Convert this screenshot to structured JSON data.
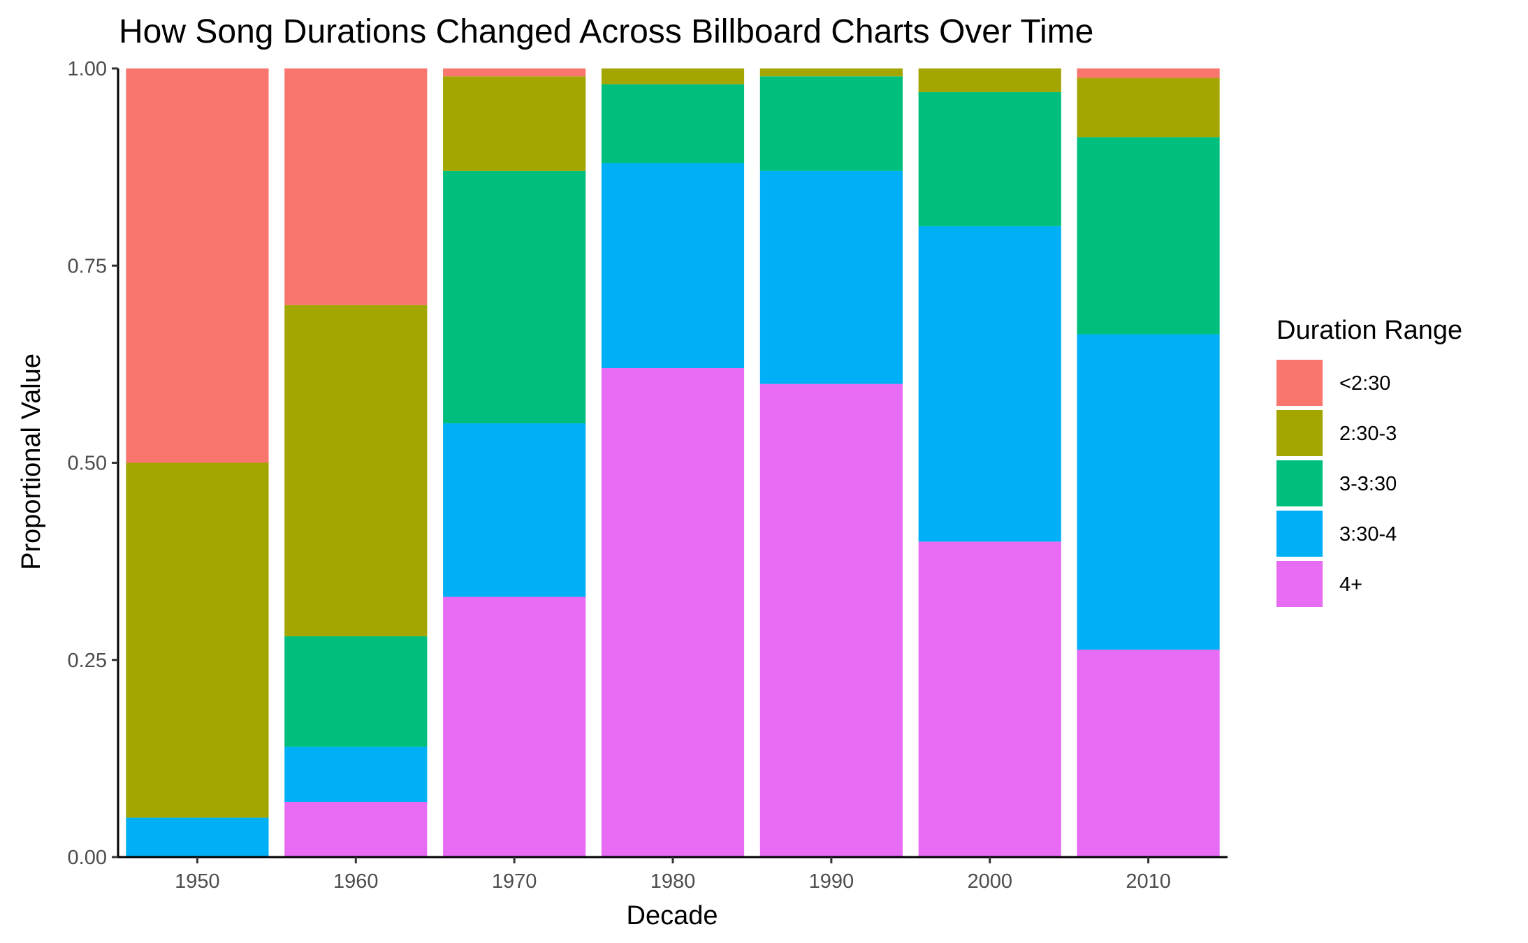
{
  "chart_data": {
    "type": "bar",
    "stacked": true,
    "title": "How Song Durations Changed Across Billboard Charts Over Time",
    "xlabel": "Decade",
    "ylabel": "Proportional Value",
    "categories": [
      "1950",
      "1960",
      "1970",
      "1980",
      "1990",
      "2000",
      "2010"
    ],
    "ylim": [
      0,
      1
    ],
    "yticks": [
      "0.00",
      "0.25",
      "0.50",
      "0.75",
      "1.00"
    ],
    "grid": false,
    "legend": {
      "title": "Duration Range",
      "position": "right"
    },
    "series": [
      {
        "name": "<2:30",
        "color": "#F8766D",
        "values": [
          0.5,
          0.3,
          0.01,
          0.0,
          0.0,
          0.0,
          0.012
        ]
      },
      {
        "name": "2:30-3",
        "color": "#A3A500",
        "values": [
          0.45,
          0.42,
          0.12,
          0.02,
          0.01,
          0.03,
          0.075
        ]
      },
      {
        "name": "3-3:30",
        "color": "#00BF7D",
        "values": [
          0.0,
          0.14,
          0.32,
          0.1,
          0.12,
          0.17,
          0.25
        ]
      },
      {
        "name": "3:30-4",
        "color": "#00B0F6",
        "values": [
          0.05,
          0.07,
          0.22,
          0.26,
          0.27,
          0.4,
          0.4
        ]
      },
      {
        "name": "4+",
        "color": "#E76BF3",
        "values": [
          0.0,
          0.07,
          0.33,
          0.62,
          0.6,
          0.4,
          0.263
        ]
      }
    ]
  }
}
